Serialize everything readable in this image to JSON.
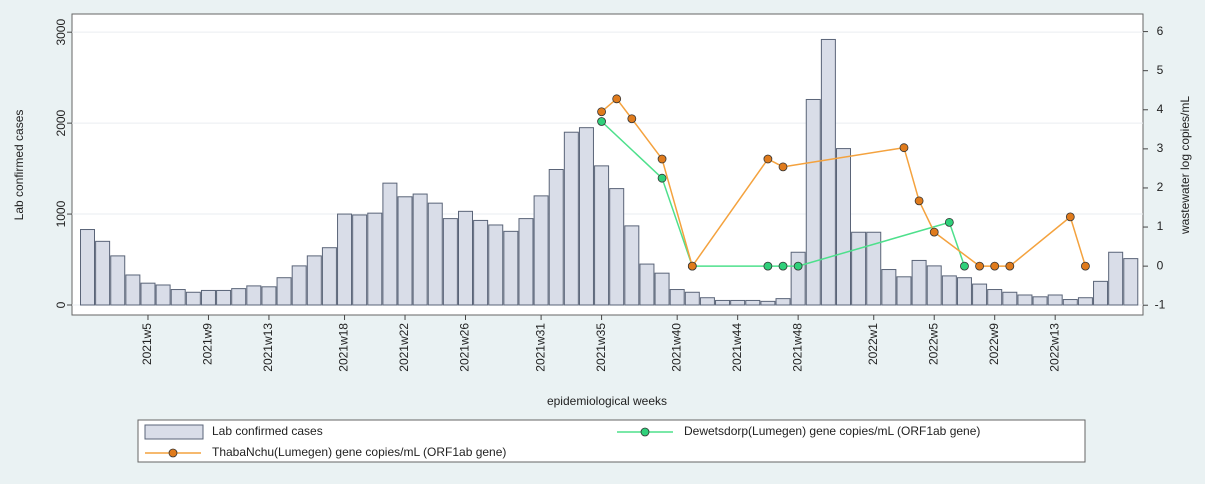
{
  "chart_data": {
    "type": "bar",
    "x_label": "epidemiological weeks",
    "y_label": "Lab confirmed cases",
    "y2_label": "wastewater log copies/mL",
    "categories": [
      null,
      null,
      null,
      null,
      "2021w5",
      null,
      null,
      null,
      "2021w9",
      null,
      null,
      null,
      "2021w13",
      null,
      null,
      null,
      null,
      "2021w18",
      null,
      null,
      null,
      "2021w22",
      null,
      null,
      null,
      "2021w26",
      null,
      null,
      null,
      null,
      "2021w31",
      null,
      null,
      null,
      "2021w35",
      null,
      null,
      null,
      null,
      "2021w40",
      null,
      null,
      null,
      "2021w44",
      null,
      null,
      null,
      "2021w48",
      null,
      null,
      null,
      null,
      "2022w1",
      null,
      null,
      null,
      "2022w5",
      null,
      null,
      null,
      "2022w9",
      null,
      null,
      null,
      "2022w13",
      null,
      null,
      null,
      null,
      null
    ],
    "series": [
      {
        "name": "Lab confirmed cases",
        "type": "bar",
        "color": "#d9dde8",
        "edge": "#5a6478",
        "values": [
          830,
          700,
          540,
          330,
          240,
          220,
          170,
          140,
          160,
          160,
          180,
          210,
          200,
          300,
          430,
          540,
          630,
          1000,
          990,
          1010,
          1340,
          1190,
          1220,
          1120,
          950,
          1030,
          930,
          880,
          810,
          950,
          1200,
          1490,
          1900,
          1950,
          1530,
          1280,
          870,
          450,
          350,
          170,
          140,
          80,
          50,
          50,
          50,
          40,
          70,
          580,
          2260,
          2920,
          1720,
          800,
          800,
          390,
          310,
          490,
          430,
          320,
          300,
          230,
          170,
          140,
          110,
          90,
          110,
          60,
          80,
          260,
          580,
          510
        ]
      },
      {
        "name": "Dewetsdorp(Lumegen) gene copies/mL (ORF1ab gene)",
        "type": "line",
        "axis": "y2",
        "color": "#4ee08c",
        "marker": "#2fd07a",
        "values": [
          null,
          null,
          null,
          null,
          null,
          null,
          null,
          null,
          null,
          null,
          null,
          null,
          null,
          null,
          null,
          null,
          null,
          null,
          null,
          null,
          null,
          null,
          null,
          null,
          null,
          null,
          null,
          null,
          null,
          null,
          null,
          null,
          null,
          null,
          3.7,
          null,
          null,
          null,
          2.25,
          null,
          0,
          null,
          null,
          null,
          null,
          0,
          0,
          0,
          null,
          null,
          null,
          null,
          null,
          null,
          null,
          null,
          null,
          1.12,
          0,
          null,
          null,
          null,
          null,
          null,
          null,
          null,
          null,
          null,
          null,
          null
        ]
      },
      {
        "name": "ThabaNchu(Lumegen) gene copies/mL (ORF1ab gene)",
        "type": "line",
        "axis": "y2",
        "color": "#f4a23e",
        "marker": "#e07b1c",
        "values": [
          null,
          null,
          null,
          null,
          null,
          null,
          null,
          null,
          null,
          null,
          null,
          null,
          null,
          null,
          null,
          null,
          null,
          null,
          null,
          null,
          null,
          null,
          null,
          null,
          null,
          null,
          null,
          null,
          null,
          null,
          null,
          null,
          null,
          null,
          3.95,
          4.28,
          3.77,
          null,
          2.74,
          null,
          0,
          null,
          null,
          null,
          null,
          2.74,
          2.54,
          null,
          null,
          null,
          null,
          null,
          null,
          null,
          3.03,
          1.67,
          0.87,
          null,
          null,
          0,
          0,
          0,
          null,
          null,
          null,
          1.26,
          0,
          null,
          null,
          null
        ]
      }
    ],
    "ylim": [
      -110,
      3200
    ],
    "yticks": [
      0,
      1000,
      2000,
      3000
    ],
    "y2lim": [
      -1.25,
      6.45
    ],
    "y2ticks": [
      -1,
      0,
      1,
      2,
      3,
      4,
      5,
      6
    ],
    "grid": true,
    "legend": "bottom"
  }
}
